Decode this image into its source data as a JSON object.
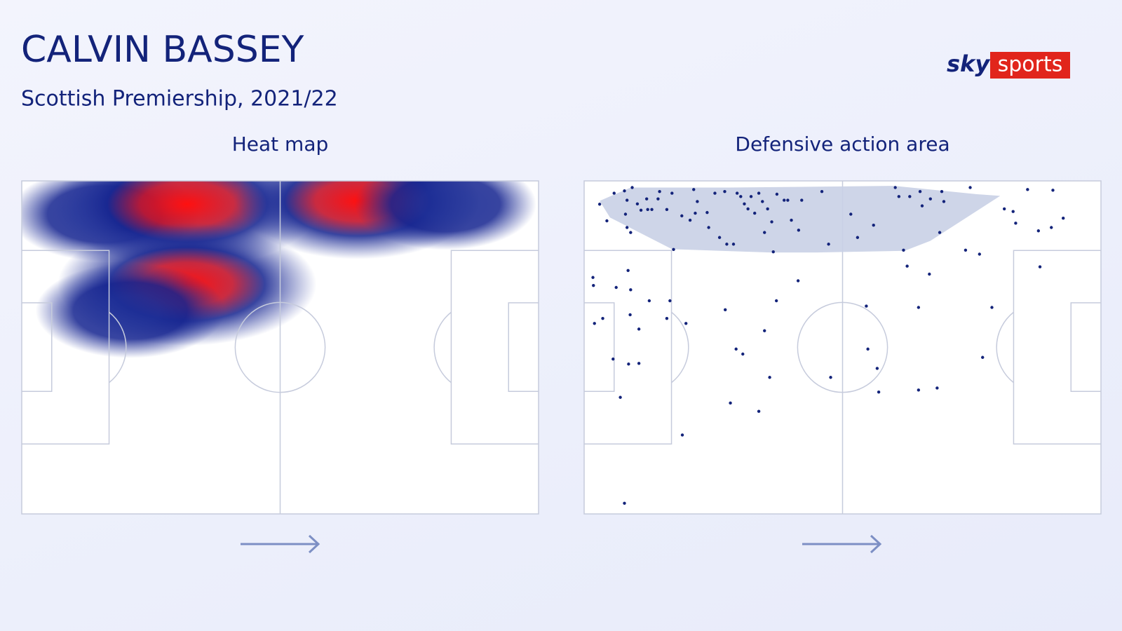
{
  "title": "CALVIN BASSEY",
  "subtitle": "Scottish Premiership, 2021/22",
  "brand": {
    "sky": "sky",
    "sports": "sports"
  },
  "chart_data": [
    {
      "type": "heatmap",
      "title": "Heat map",
      "xlim": [
        0,
        100
      ],
      "ylim": [
        0,
        100
      ],
      "x": [
        16,
        32,
        65,
        32,
        82,
        21
      ],
      "y": [
        10,
        7,
        6,
        31,
        7,
        39
      ],
      "values": [
        0.5,
        1,
        0.85,
        0.95,
        0.45,
        0.5
      ]
    },
    {
      "type": "scatter",
      "title": "Defensive action area",
      "xlim": [
        0,
        100
      ],
      "ylim": [
        0,
        100
      ],
      "color": "#13237a",
      "area": {
        "x": [
          3,
          9,
          28,
          60,
          76,
          80.5,
          73,
          67,
          62,
          45,
          36,
          17,
          5
        ],
        "y": [
          6,
          2,
          2,
          1.5,
          4,
          4.5,
          12,
          18,
          21,
          21.5,
          21.5,
          20.5,
          11
        ]
      },
      "x": [
        3,
        4.4,
        5.8,
        7.8,
        8.3,
        8,
        8.3,
        9,
        9.3,
        10.3,
        11,
        12.1,
        12.3,
        13.1,
        14.3,
        14.6,
        16,
        17,
        17.3,
        18.9,
        20.5,
        21.2,
        21.5,
        21.9,
        23.8,
        24.1,
        25.3,
        26.2,
        27.2,
        27.6,
        28.9,
        29.6,
        30.3,
        31,
        31.7,
        32.3,
        33,
        33.8,
        34.5,
        34.9,
        35.5,
        36.3,
        36.6,
        37.3,
        38.7,
        39.4,
        40.1,
        41.5,
        42.1,
        46,
        47.3,
        51.6,
        52.9,
        56,
        60.2,
        60.9,
        61.8,
        63,
        65,
        65.4,
        67,
        69.2,
        69.6,
        68.8,
        74.7,
        73.8,
        76.5,
        81.3,
        83,
        83.5,
        85.8,
        87.9,
        90.7,
        90.4,
        92.7,
        1.7,
        1.8,
        8.5,
        6.2,
        9,
        12.6,
        16.6,
        8.9,
        3.6,
        2,
        16,
        19.7,
        10.6,
        27.3,
        34.9,
        37.2,
        41.4,
        54.6,
        62.5,
        66.8,
        64.7,
        78.9,
        88.2,
        29.4,
        30.7,
        54.9,
        56.7,
        77.1,
        5.6,
        8.6,
        10.6,
        35.9,
        47.7,
        57,
        64.7,
        68.3,
        7,
        28.3,
        33.8,
        19,
        7.8
      ],
      "y": [
        7,
        12,
        3.7,
        3,
        5.8,
        10,
        14,
        15.5,
        2,
        6.9,
        8.8,
        5.4,
        8.6,
        8.6,
        5.4,
        3.2,
        8.6,
        3.7,
        20.6,
        10.5,
        11.8,
        2.6,
        9.7,
        6.2,
        9.5,
        14,
        3.7,
        17,
        3.2,
        19,
        19,
        3.7,
        4.7,
        6.9,
        8.4,
        4.7,
        9.7,
        3.7,
        6.2,
        15.5,
        8.4,
        12.3,
        21.3,
        4,
        5.8,
        5.8,
        11.8,
        14.8,
        5.8,
        3.2,
        19,
        10,
        17,
        13.3,
        2,
        4.7,
        20.8,
        4.7,
        3.2,
        7.5,
        5.4,
        3.2,
        6.2,
        15.5,
        2,
        20.8,
        22,
        8.4,
        9.2,
        12.7,
        2.6,
        15,
        2.8,
        14,
        11.2,
        29,
        31.4,
        26.9,
        32,
        32.7,
        36,
        36,
        40.2,
        41.3,
        42.8,
        41.3,
        42.8,
        44.5,
        38.7,
        45,
        36,
        30,
        37.6,
        25.6,
        28,
        38,
        38,
        25.8,
        50.5,
        52,
        50.5,
        56.3,
        53,
        53.5,
        55,
        54.8,
        59,
        59,
        63.4,
        62.8,
        62.2,
        65,
        66.7,
        69.2,
        76.3,
        96.8
      ]
    }
  ]
}
